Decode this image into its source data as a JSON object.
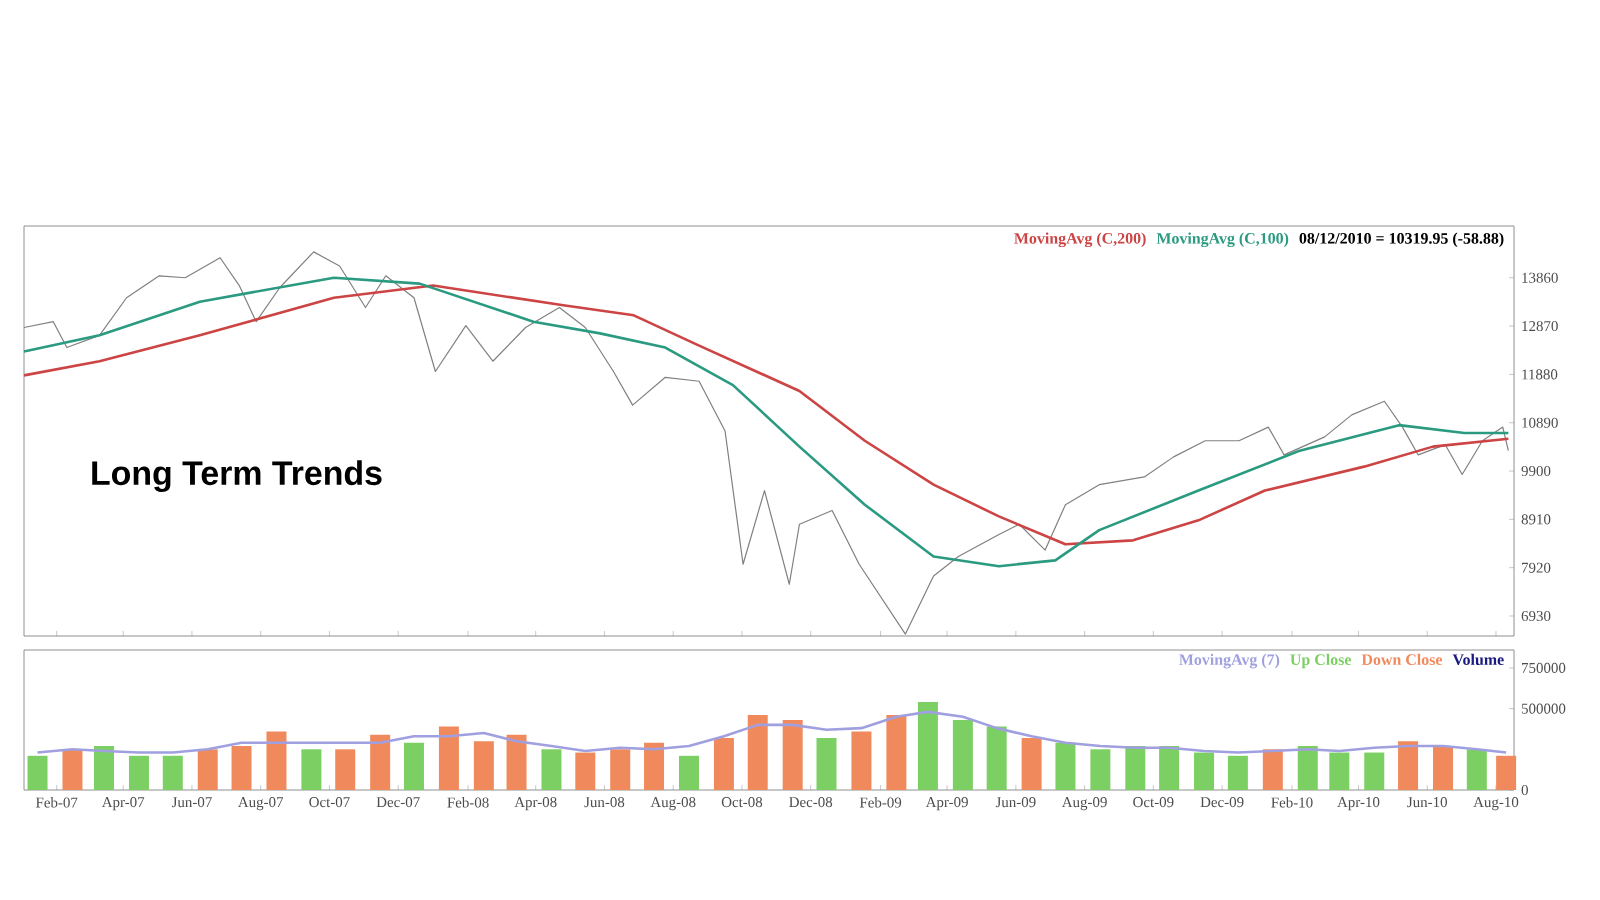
{
  "chart_data": [
    {
      "type": "line",
      "xlim": [
        "2007-01-03",
        "2010-08-17"
      ],
      "xticks": [
        {
          "value": "2007-02-01",
          "label": null
        },
        {
          "value": "2007-04-01",
          "label": null
        },
        {
          "value": "2007-06-01",
          "label": null
        },
        {
          "value": "2007-08-01",
          "label": null
        },
        {
          "value": "2007-10-01",
          "label": null
        },
        {
          "value": "2007-12-01",
          "label": null
        },
        {
          "value": "2008-02-01",
          "label": null
        },
        {
          "value": "2008-04-01",
          "label": null
        },
        {
          "value": "2008-06-01",
          "label": null
        },
        {
          "value": "2008-08-01",
          "label": null
        },
        {
          "value": "2008-10-01",
          "label": null
        },
        {
          "value": "2008-12-01",
          "label": null
        },
        {
          "value": "2009-02-01",
          "label": null
        },
        {
          "value": "2009-04-01",
          "label": null
        },
        {
          "value": "2009-06-01",
          "label": null
        },
        {
          "value": "2009-08-01",
          "label": null
        },
        {
          "value": "2009-10-01",
          "label": null
        },
        {
          "value": "2009-12-01",
          "label": null
        },
        {
          "value": "2010-02-01",
          "label": null
        },
        {
          "value": "2010-04-01",
          "label": null
        },
        {
          "value": "2010-06-01",
          "label": null
        },
        {
          "value": "2010-08-01",
          "label": null
        }
      ],
      "ylim": [
        6520,
        14920
      ],
      "yticks": [
        6930,
        7920,
        8910,
        9900,
        10890,
        11880,
        12870,
        13860
      ],
      "tick_labels": "y",
      "legend": "top right",
      "marker": "none",
      "line_style": "solid",
      "annotations": [
        "Long Term Trends",
        "08/12/2010 = 10319.95 (-58.88)"
      ],
      "series": [
        {
          "color": "#808080",
          "x": [
            "2007-01-03",
            "2007-01-29",
            "2007-02-10",
            "2007-03-11",
            "2007-04-04",
            "2007-05-03",
            "2007-05-26",
            "2007-06-26",
            "2007-07-13",
            "2007-07-28",
            "2007-08-18",
            "2007-09-17",
            "2007-10-10",
            "2007-11-02",
            "2007-11-20",
            "2007-12-15",
            "2008-01-03",
            "2008-01-30",
            "2008-02-23",
            "2008-03-23",
            "2008-04-22",
            "2008-05-15",
            "2008-06-09",
            "2008-06-26",
            "2008-07-25",
            "2008-08-24",
            "2008-09-16",
            "2008-10-02",
            "2008-10-21",
            "2008-11-12",
            "2008-11-21",
            "2008-12-20",
            "2009-01-13",
            "2009-02-23",
            "2009-03-20",
            "2009-04-11",
            "2009-05-17",
            "2009-06-04",
            "2009-06-27",
            "2009-07-15",
            "2009-08-14",
            "2009-09-23",
            "2009-10-19",
            "2009-11-16",
            "2009-12-16",
            "2010-01-11",
            "2010-01-25",
            "2010-03-02",
            "2010-03-26",
            "2010-04-24",
            "2010-05-10",
            "2010-05-24",
            "2010-06-17",
            "2010-07-02",
            "2010-07-20",
            "2010-08-07",
            "2010-08-12"
          ],
          "values": [
            12840,
            12960,
            12430,
            12680,
            13450,
            13900,
            13860,
            14270,
            13700,
            12960,
            13660,
            14390,
            14100,
            13250,
            13900,
            13450,
            11940,
            12880,
            12150,
            12840,
            13250,
            12840,
            11940,
            11250,
            11820,
            11740,
            10720,
            7990,
            9500,
            7580,
            8810,
            9090,
            7990,
            6560,
            7750,
            8150,
            8600,
            8810,
            8280,
            9210,
            9620,
            9780,
            10190,
            10520,
            10520,
            10800,
            10230,
            10600,
            11050,
            11330,
            10800,
            10230,
            10440,
            9830,
            10520,
            10800,
            10320
          ]
        },
        {
          "name": "MovingAvg (C,200)",
          "color": "#cc4444",
          "x": [
            "2007-01-03",
            "2007-03-11",
            "2007-06-08",
            "2007-10-05",
            "2008-01-01",
            "2008-04-27",
            "2008-06-27",
            "2008-08-24",
            "2008-11-21",
            "2009-01-18",
            "2009-03-20",
            "2009-05-17",
            "2009-07-15",
            "2009-09-13",
            "2009-11-10",
            "2010-01-08",
            "2010-04-06",
            "2010-06-06",
            "2010-08-12"
          ],
          "values": [
            11860,
            12150,
            12680,
            13450,
            13700,
            13290,
            13090,
            12470,
            11540,
            10520,
            9620,
            8970,
            8400,
            8480,
            8890,
            9500,
            9990,
            10400,
            10560
          ]
        },
        {
          "name": "MovingAvg (C,100)",
          "color": "#2a9a80",
          "x": [
            "2007-01-03",
            "2007-03-11",
            "2007-06-08",
            "2007-10-05",
            "2007-12-20",
            "2008-03-30",
            "2008-05-28",
            "2008-07-25",
            "2008-09-23",
            "2008-11-21",
            "2009-01-18",
            "2009-03-20",
            "2009-05-17",
            "2009-07-06",
            "2009-08-14",
            "2009-11-10",
            "2010-02-07",
            "2010-05-07",
            "2010-07-04",
            "2010-08-12"
          ],
          "values": [
            12350,
            12680,
            13370,
            13860,
            13740,
            12960,
            12720,
            12430,
            11660,
            10400,
            9210,
            8150,
            7950,
            8070,
            8690,
            9500,
            10310,
            10840,
            10680,
            10680
          ]
        }
      ]
    },
    {
      "type": "bar",
      "xlim": [
        "2007-01-03",
        "2010-08-17"
      ],
      "xticks": [
        {
          "value": "2007-02-01",
          "label": "Feb-07"
        },
        {
          "value": "2007-04-01",
          "label": "Apr-07"
        },
        {
          "value": "2007-06-01",
          "label": "Jun-07"
        },
        {
          "value": "2007-08-01",
          "label": "Aug-07"
        },
        {
          "value": "2007-10-01",
          "label": "Oct-07"
        },
        {
          "value": "2007-12-01",
          "label": "Dec-07"
        },
        {
          "value": "2008-02-01",
          "label": "Feb-08"
        },
        {
          "value": "2008-04-01",
          "label": "Apr-08"
        },
        {
          "value": "2008-06-01",
          "label": "Jun-08"
        },
        {
          "value": "2008-08-01",
          "label": "Aug-08"
        },
        {
          "value": "2008-10-01",
          "label": "Oct-08"
        },
        {
          "value": "2008-12-01",
          "label": "Dec-08"
        },
        {
          "value": "2009-02-01",
          "label": "Feb-09"
        },
        {
          "value": "2009-04-01",
          "label": "Apr-09"
        },
        {
          "value": "2009-06-01",
          "label": "Jun-09"
        },
        {
          "value": "2009-08-01",
          "label": "Aug-09"
        },
        {
          "value": "2009-10-01",
          "label": "Oct-09"
        },
        {
          "value": "2009-12-01",
          "label": "Dec-09"
        },
        {
          "value": "2010-02-01",
          "label": "Feb-10"
        },
        {
          "value": "2010-04-01",
          "label": "Apr-10"
        },
        {
          "value": "2010-06-01",
          "label": "Jun-10"
        },
        {
          "value": "2010-08-01",
          "label": "Aug-10"
        }
      ],
      "ylim": [
        0,
        860000
      ],
      "yticks": [
        0,
        500000,
        750000
      ],
      "legend": "top right",
      "legend_title": "Volume",
      "series": [
        {
          "name": "MovingAvg (7)",
          "type": "line",
          "color": "#a0a0e0",
          "x": [
            "2007-01-15",
            "2007-02-15",
            "2007-03-15",
            "2007-04-15",
            "2007-05-15",
            "2007-06-15",
            "2007-07-15",
            "2007-08-15",
            "2007-09-15",
            "2007-10-15",
            "2007-11-15",
            "2007-12-15",
            "2008-01-15",
            "2008-02-15",
            "2008-03-15",
            "2008-04-15",
            "2008-05-15",
            "2008-06-15",
            "2008-07-15",
            "2008-08-15",
            "2008-09-15",
            "2008-10-15",
            "2008-11-15",
            "2008-12-15",
            "2009-01-15",
            "2009-02-15",
            "2009-03-15",
            "2009-04-15",
            "2009-05-15",
            "2009-06-15",
            "2009-07-15",
            "2009-08-15",
            "2009-09-15",
            "2009-10-15",
            "2009-11-15",
            "2009-12-15",
            "2010-01-15",
            "2010-02-15",
            "2010-03-15",
            "2010-04-15",
            "2010-05-15",
            "2010-06-15",
            "2010-07-15",
            "2010-08-10"
          ],
          "values": [
            230000,
            250000,
            240000,
            230000,
            230000,
            250000,
            290000,
            290000,
            290000,
            290000,
            290000,
            330000,
            330000,
            350000,
            300000,
            270000,
            240000,
            260000,
            250000,
            270000,
            330000,
            400000,
            400000,
            370000,
            380000,
            450000,
            480000,
            450000,
            380000,
            330000,
            290000,
            270000,
            260000,
            260000,
            240000,
            230000,
            240000,
            250000,
            240000,
            260000,
            270000,
            270000,
            250000,
            230000
          ]
        },
        {
          "name": "Up Close",
          "color": "#7ccf63",
          "x": [
            "2007-01-15",
            "2007-03-15",
            "2007-04-15",
            "2007-05-15",
            "2007-09-15",
            "2007-12-15",
            "2008-04-15",
            "2008-08-15",
            "2008-12-15",
            "2009-03-15",
            "2009-04-15",
            "2009-05-15",
            "2009-07-15",
            "2009-08-15",
            "2009-09-15",
            "2009-10-15",
            "2009-11-15",
            "2009-12-15",
            "2010-02-15",
            "2010-03-15",
            "2010-04-15",
            "2010-07-15"
          ],
          "values": [
            210000,
            270000,
            210000,
            210000,
            250000,
            290000,
            250000,
            210000,
            320000,
            540000,
            430000,
            390000,
            290000,
            250000,
            270000,
            270000,
            230000,
            210000,
            270000,
            230000,
            230000,
            250000
          ]
        },
        {
          "name": "Down Close",
          "color": "#f08a5c",
          "x": [
            "2007-02-15",
            "2007-06-15",
            "2007-07-15",
            "2007-08-15",
            "2007-10-15",
            "2007-11-15",
            "2008-01-15",
            "2008-02-15",
            "2008-03-15",
            "2008-05-15",
            "2008-06-15",
            "2008-07-15",
            "2008-09-15",
            "2008-10-15",
            "2008-11-15",
            "2009-01-15",
            "2009-02-15",
            "2009-06-15",
            "2010-01-15",
            "2010-05-15",
            "2010-06-15",
            "2010-08-10"
          ],
          "values": [
            250000,
            250000,
            270000,
            360000,
            250000,
            340000,
            390000,
            300000,
            340000,
            230000,
            250000,
            290000,
            320000,
            460000,
            430000,
            360000,
            460000,
            320000,
            250000,
            300000,
            270000,
            210000
          ]
        }
      ]
    }
  ]
}
